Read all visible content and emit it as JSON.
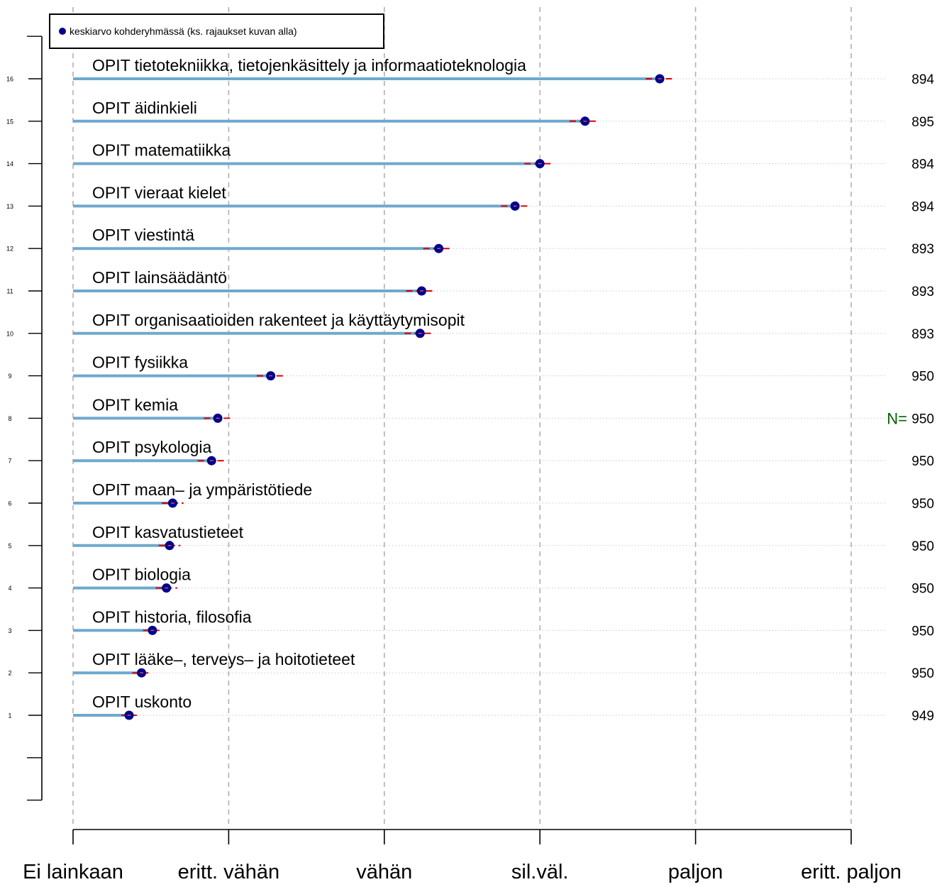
{
  "chart_data": {
    "type": "dot",
    "legend": {
      "label": "keskiarvo kohderyhmässä (ks. rajaukset kuvan alla)",
      "position": "top-left",
      "marker_color": "#00008b"
    },
    "x_ticks": [
      {
        "value": 1,
        "label": "Ei lainkaan"
      },
      {
        "value": 2,
        "label": "eritt. vähän"
      },
      {
        "value": 3,
        "label": "vähän"
      },
      {
        "value": 4,
        "label": "sil.väl."
      },
      {
        "value": 5,
        "label": "paljon"
      },
      {
        "value": 6,
        "label": "eritt. paljon"
      }
    ],
    "xlim": [
      1,
      6
    ],
    "ylim": [
      -1,
      17
    ],
    "n_label": "N=",
    "grid": {
      "vertical": "dashed",
      "horizontal": "dotted"
    },
    "colors": {
      "bar": "#6fa8cd",
      "point": "#00008b",
      "ci": "#dd0000",
      "n_label": "#006400",
      "grid": "#b0b0b0"
    },
    "items": [
      {
        "row": 16,
        "label": "OPIT tietotekniikka, tietojenkäsittely ja informaatioteknologia",
        "mean": 4.77,
        "ci_low": 4.68,
        "ci_high": 4.86,
        "n": "894"
      },
      {
        "row": 15,
        "label": "OPIT äidinkieli",
        "mean": 4.29,
        "ci_low": 4.19,
        "ci_high": 4.37,
        "n": "895"
      },
      {
        "row": 14,
        "label": "OPIT matematiikka",
        "mean": 4.0,
        "ci_low": 3.9,
        "ci_high": 4.08,
        "n": "894"
      },
      {
        "row": 13,
        "label": "OPIT vieraat kielet",
        "mean": 3.84,
        "ci_low": 3.75,
        "ci_high": 3.93,
        "n": "894"
      },
      {
        "row": 12,
        "label": "OPIT viestintä",
        "mean": 3.35,
        "ci_low": 3.25,
        "ci_high": 3.43,
        "n": "893"
      },
      {
        "row": 11,
        "label": "OPIT lainsäädäntö",
        "mean": 3.24,
        "ci_low": 3.14,
        "ci_high": 3.31,
        "n": "893"
      },
      {
        "row": 10,
        "label": "OPIT organisaatioiden rakenteet ja käyttäytymisopit",
        "mean": 3.23,
        "ci_low": 3.13,
        "ci_high": 3.3,
        "n": "893"
      },
      {
        "row": 9,
        "label": "OPIT fysiikka",
        "mean": 2.27,
        "ci_low": 2.18,
        "ci_high": 2.35,
        "n": "950"
      },
      {
        "row": 8,
        "label": "OPIT kemia",
        "mean": 1.93,
        "ci_low": 1.84,
        "ci_high": 2.02,
        "n": "950"
      },
      {
        "row": 7,
        "label": "OPIT psykologia",
        "mean": 1.89,
        "ci_low": 1.8,
        "ci_high": 1.98,
        "n": "950"
      },
      {
        "row": 6,
        "label": "OPIT maan‒ ja ympäristötiede",
        "mean": 1.64,
        "ci_low": 1.57,
        "ci_high": 1.71,
        "n": "950"
      },
      {
        "row": 5,
        "label": "OPIT kasvatustieteet",
        "mean": 1.62,
        "ci_low": 1.55,
        "ci_high": 1.69,
        "n": "950"
      },
      {
        "row": 4,
        "label": "OPIT biologia",
        "mean": 1.6,
        "ci_low": 1.53,
        "ci_high": 1.67,
        "n": "950"
      },
      {
        "row": 3,
        "label": "OPIT historia, filosofia",
        "mean": 1.51,
        "ci_low": 1.45,
        "ci_high": 1.57,
        "n": "950"
      },
      {
        "row": 2,
        "label": "OPIT lääke‒, terveys‒ ja hoitotieteet",
        "mean": 1.44,
        "ci_low": 1.38,
        "ci_high": 1.5,
        "n": "950"
      },
      {
        "row": 1,
        "label": "OPIT uskonto",
        "mean": 1.36,
        "ci_low": 1.31,
        "ci_high": 1.41,
        "n": "949"
      }
    ]
  }
}
